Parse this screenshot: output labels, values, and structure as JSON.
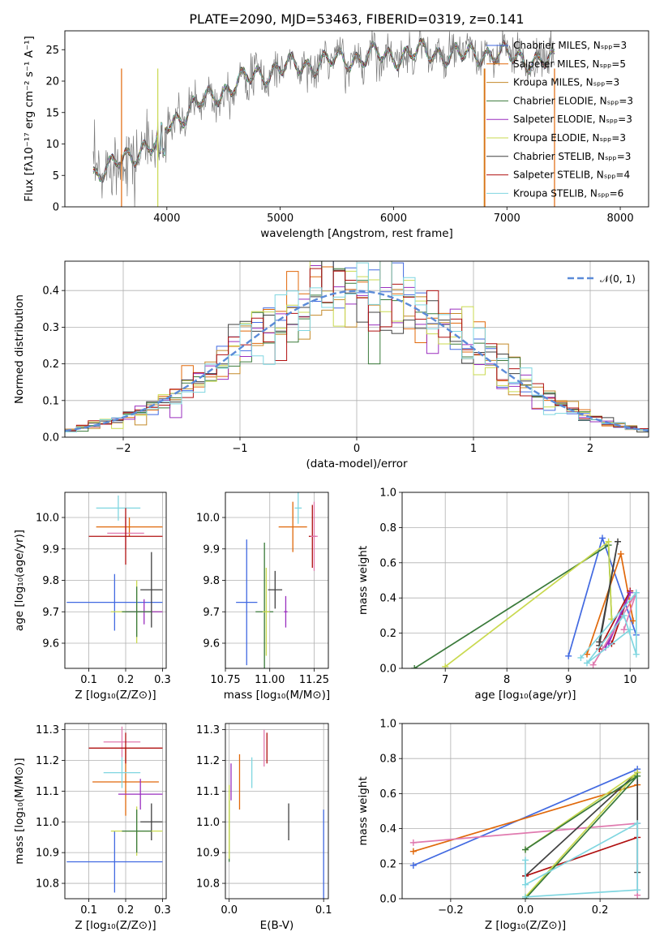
{
  "colors": {
    "c0": "#4169e1",
    "c1": "#e0680a",
    "c2": "#c48a2a",
    "c3": "#3a7a3a",
    "c4": "#9a2fbf",
    "c5": "#c9d94f",
    "c6": "#404040",
    "c7": "#b01010",
    "c8": "#7fd6e0",
    "c9": "#e07aaf",
    "mean": "#5b8bd8"
  },
  "chart_data": [
    {
      "id": "spectrum",
      "type": "line",
      "title": "PLATE=2090, MJD=53463, FIBERID=0319, z=0.141",
      "xlabel": "wavelength [Angstrom, rest frame]",
      "ylabel": "Flux [fλ10⁻¹⁷ erg cm⁻² s⁻¹ A⁻¹]",
      "xlim": [
        3100,
        8250
      ],
      "ylim": [
        0,
        28
      ],
      "xticks": [
        "4000",
        "5000",
        "6000",
        "7000",
        "8000"
      ],
      "yticks": [
        "0",
        "5",
        "10",
        "15",
        "20",
        "25"
      ],
      "grid": false,
      "legend_position": "right",
      "legend": [
        "Chabrier MILES, N_SSP=3",
        "Salpeter MILES, N_SSP=5",
        "Kroupa MILES, N_SSP=3",
        "Chabrier ELODIE, N_SSP=3",
        "Salpeter ELODIE, N_SSP=3",
        "Kroupa ELODIE, N_SSP=3",
        "Chabrier STELIB, N_SSP=3",
        "Salpeter STELIB, N_SSP=4",
        "Kroupa STELIB, N_SSP=6"
      ],
      "continuum": [
        [
          3350,
          5.5
        ],
        [
          3500,
          6.0
        ],
        [
          3650,
          8.0
        ],
        [
          3800,
          9.5
        ],
        [
          3900,
          9.5
        ],
        [
          4000,
          13.0
        ],
        [
          4200,
          15.5
        ],
        [
          4400,
          17.5
        ],
        [
          4600,
          19.5
        ],
        [
          4800,
          21.0
        ],
        [
          5000,
          22.0
        ],
        [
          5200,
          22.5
        ],
        [
          5400,
          23.0
        ],
        [
          5600,
          23.5
        ],
        [
          5800,
          24.0
        ],
        [
          6000,
          24.0
        ],
        [
          6200,
          24.5
        ],
        [
          6400,
          24.5
        ],
        [
          6600,
          24.0
        ],
        [
          6800,
          24.5
        ],
        [
          7000,
          24.0
        ],
        [
          7200,
          23.5
        ],
        [
          7350,
          23.0
        ]
      ]
    },
    {
      "id": "residuals",
      "type": "histogram",
      "xlabel": "(data-model)/error",
      "ylabel": "Normed distribution",
      "xlim": [
        -2.5,
        2.5
      ],
      "ylim": [
        0,
        0.48
      ],
      "xticks": [
        "−2",
        "−1",
        "0",
        "1",
        "2"
      ],
      "yticks": [
        "0.0",
        "0.1",
        "0.2",
        "0.3",
        "0.4"
      ],
      "grid": true,
      "legend_position": "top-right",
      "legend": [
        "𝒩(0, 1)"
      ],
      "bin_width": 0.1,
      "reference_curve": "standard normal"
    },
    {
      "id": "age-z",
      "type": "scatter",
      "xlabel": "Z [log₁₀(Z/Z⊙)]",
      "ylabel": "age  [log₁₀(age/yr)]",
      "xlim": [
        0.035,
        0.31
      ],
      "ylim": [
        9.52,
        10.08
      ],
      "xticks": [
        "0.1",
        "0.2",
        "0.3"
      ],
      "yticks": [
        "9.6",
        "9.7",
        "9.8",
        "9.9",
        "10.0"
      ],
      "grid": true,
      "points": [
        {
          "x": 0.17,
          "y": 9.73,
          "xe": 0.13,
          "ye": 0.09,
          "c": "c0"
        },
        {
          "x": 0.21,
          "y": 9.97,
          "xe": 0.09,
          "ye": 0.03,
          "c": "c1"
        },
        {
          "x": 0.2,
          "y": 9.95,
          "xe": 0.05,
          "ye": 0.05,
          "c": "c9"
        },
        {
          "x": 0.23,
          "y": 9.7,
          "xe": 0.07,
          "ye": 0.1,
          "c": "c5"
        },
        {
          "x": 0.25,
          "y": 9.7,
          "xe": 0.05,
          "ye": 0.04,
          "c": "c4"
        },
        {
          "x": 0.27,
          "y": 9.77,
          "xe": 0.03,
          "ye": 0.12,
          "c": "c6"
        },
        {
          "x": 0.18,
          "y": 10.03,
          "xe": 0.06,
          "ye": 0.04,
          "c": "c8"
        },
        {
          "x": 0.2,
          "y": 9.94,
          "xe": 0.1,
          "ye": 0.09,
          "c": "c7"
        },
        {
          "x": 0.23,
          "y": 9.7,
          "xe": 0.04,
          "ye": 0.08,
          "c": "c3"
        }
      ]
    },
    {
      "id": "age-mass",
      "type": "scatter",
      "xlabel": "mass [log₁₀(M/M⊙)]",
      "ylabel": "",
      "xlim": [
        10.75,
        11.33
      ],
      "ylim": [
        9.52,
        10.08
      ],
      "xticks": [
        "10.75",
        "11.00",
        "11.25"
      ],
      "yticks": [
        "9.6",
        "9.7",
        "9.8",
        "9.9",
        "10.0"
      ],
      "grid": true,
      "points": [
        {
          "x": 10.87,
          "y": 9.73,
          "xe": 0.06,
          "ye": 0.2,
          "c": "c0"
        },
        {
          "x": 11.13,
          "y": 9.97,
          "xe": 0.08,
          "ye": 0.08,
          "c": "c1"
        },
        {
          "x": 10.97,
          "y": 9.7,
          "xe": 0.05,
          "ye": 0.22,
          "c": "c3"
        },
        {
          "x": 10.98,
          "y": 9.7,
          "xe": 0.02,
          "ye": 0.14,
          "c": "c5"
        },
        {
          "x": 11.03,
          "y": 9.77,
          "xe": 0.04,
          "ye": 0.06,
          "c": "c6"
        },
        {
          "x": 11.09,
          "y": 9.7,
          "xe": 0.01,
          "ye": 0.05,
          "c": "c4"
        },
        {
          "x": 11.16,
          "y": 10.03,
          "xe": 0.02,
          "ye": 0.05,
          "c": "c8"
        },
        {
          "x": 11.24,
          "y": 9.94,
          "xe": 0.02,
          "ye": 0.1,
          "c": "c7"
        },
        {
          "x": 11.25,
          "y": 9.94,
          "xe": 0.02,
          "ye": 0.11,
          "c": "c9"
        }
      ]
    },
    {
      "id": "weight-age",
      "type": "line",
      "xlabel": "age  [log₁₀(age/yr)]",
      "ylabel": "mass weight",
      "xlim": [
        6.3,
        10.3
      ],
      "ylim": [
        0,
        1.0
      ],
      "xticks": [
        "7",
        "8",
        "9",
        "10"
      ],
      "yticks": [
        "0.0",
        "0.2",
        "0.4",
        "0.6",
        "0.8",
        "1.0"
      ],
      "grid": true,
      "series": [
        {
          "c": "c0",
          "points": [
            [
              9.0,
              0.07
            ],
            [
              9.55,
              0.74
            ],
            [
              10.1,
              0.19
            ]
          ]
        },
        {
          "c": "c3",
          "points": [
            [
              6.5,
              0.0
            ],
            [
              9.65,
              0.7
            ],
            [
              9.7,
              0.28
            ]
          ]
        },
        {
          "c": "c5",
          "points": [
            [
              7.0,
              0.01
            ],
            [
              9.65,
              0.72
            ],
            [
              9.7,
              0.28
            ]
          ]
        },
        {
          "c": "c1",
          "points": [
            [
              9.3,
              0.08
            ],
            [
              9.85,
              0.65
            ],
            [
              10.05,
              0.27
            ]
          ]
        },
        {
          "c": "c6",
          "points": [
            [
              9.5,
              0.13
            ],
            [
              9.8,
              0.72
            ],
            [
              9.5,
              0.15
            ]
          ]
        },
        {
          "c": "c7",
          "points": [
            [
              9.5,
              0.11
            ],
            [
              10.0,
              0.44
            ],
            [
              9.7,
              0.14
            ]
          ]
        },
        {
          "c": "c4",
          "points": [
            [
              9.6,
              0.12
            ],
            [
              10.0,
              0.43
            ],
            [
              9.65,
              0.14
            ]
          ]
        },
        {
          "c": "c9",
          "points": [
            [
              9.4,
              0.02
            ],
            [
              10.1,
              0.43
            ],
            [
              9.9,
              0.22
            ]
          ]
        },
        {
          "c": "c8",
          "points": [
            [
              9.2,
              0.06
            ],
            [
              10.1,
              0.43
            ],
            [
              10.1,
              0.08
            ],
            [
              9.9,
              0.3
            ],
            [
              9.3,
              0.03
            ],
            [
              10.0,
              0.22
            ]
          ]
        }
      ]
    },
    {
      "id": "mass-z",
      "type": "scatter",
      "xlabel": "Z [log₁₀(Z/Z⊙)]",
      "ylabel": "mass [log₁₀(M/M⊙)]",
      "xlim": [
        0.035,
        0.31
      ],
      "ylim": [
        10.75,
        11.32
      ],
      "xticks": [
        "0.1",
        "0.2",
        "0.3"
      ],
      "yticks": [
        "10.8",
        "10.9",
        "11.0",
        "11.1",
        "11.2",
        "11.3"
      ],
      "grid": true,
      "points": [
        {
          "x": 0.17,
          "y": 10.87,
          "xe": 0.13,
          "ye": 0.1,
          "c": "c0"
        },
        {
          "x": 0.2,
          "y": 11.13,
          "xe": 0.09,
          "ye": 0.11,
          "c": "c1"
        },
        {
          "x": 0.19,
          "y": 11.26,
          "xe": 0.05,
          "ye": 0.05,
          "c": "c9"
        },
        {
          "x": 0.24,
          "y": 11.09,
          "xe": 0.06,
          "ye": 0.05,
          "c": "c4"
        },
        {
          "x": 0.27,
          "y": 11.0,
          "xe": 0.03,
          "ye": 0.06,
          "c": "c6"
        },
        {
          "x": 0.23,
          "y": 10.97,
          "xe": 0.07,
          "ye": 0.08,
          "c": "c5"
        },
        {
          "x": 0.19,
          "y": 11.16,
          "xe": 0.05,
          "ye": 0.05,
          "c": "c8"
        },
        {
          "x": 0.2,
          "y": 11.24,
          "xe": 0.1,
          "ye": 0.05,
          "c": "c7"
        },
        {
          "x": 0.23,
          "y": 10.97,
          "xe": 0.04,
          "ye": 0.07,
          "c": "c3"
        }
      ]
    },
    {
      "id": "mass-ebv",
      "type": "scatter",
      "xlabel": "E(B-V)",
      "ylabel": "",
      "xlim": [
        -0.004,
        0.105
      ],
      "ylim": [
        10.75,
        11.32
      ],
      "xticks": [
        "0.0",
        "0.1"
      ],
      "yticks": [
        "10.8",
        "10.9",
        "11.0",
        "11.1",
        "11.2",
        "11.3"
      ],
      "grid": true,
      "points": [
        {
          "x": 0.0,
          "y": 10.97,
          "xe": 0,
          "ye": 0.1,
          "c": "c3"
        },
        {
          "x": 0.0,
          "y": 11.0,
          "xe": 0,
          "ye": 0.12,
          "c": "c5"
        },
        {
          "x": 0.002,
          "y": 11.13,
          "xe": 0,
          "ye": 0.06,
          "c": "c4"
        },
        {
          "x": 0.011,
          "y": 11.13,
          "xe": 0,
          "ye": 0.09,
          "c": "c1"
        },
        {
          "x": 0.024,
          "y": 11.16,
          "xe": 0,
          "ye": 0.05,
          "c": "c8"
        },
        {
          "x": 0.037,
          "y": 11.24,
          "xe": 0,
          "ye": 0.06,
          "c": "c9"
        },
        {
          "x": 0.04,
          "y": 11.24,
          "xe": 0,
          "ye": 0.05,
          "c": "c7"
        },
        {
          "x": 0.063,
          "y": 11.0,
          "xe": 0,
          "ye": 0.06,
          "c": "c6"
        },
        {
          "x": 0.1,
          "y": 10.87,
          "xe": 0,
          "ye": 0.17,
          "c": "c0"
        }
      ]
    },
    {
      "id": "weight-z",
      "type": "line",
      "xlabel": "Z [log₁₀(Z/Z⊙)]",
      "ylabel": "mass weight",
      "xlim": [
        -0.33,
        0.33
      ],
      "ylim": [
        0,
        1.0
      ],
      "xticks": [
        "−0.2",
        "0.0",
        "0.2"
      ],
      "yticks": [
        "0.0",
        "0.2",
        "0.4",
        "0.6",
        "0.8",
        "1.0"
      ],
      "grid": true,
      "series": [
        {
          "c": "c0",
          "points": [
            [
              -0.3,
              0.19
            ],
            [
              0.3,
              0.74
            ]
          ]
        },
        {
          "c": "c1",
          "points": [
            [
              -0.3,
              0.27
            ],
            [
              0.3,
              0.65
            ]
          ]
        },
        {
          "c": "c9",
          "points": [
            [
              -0.3,
              0.32
            ],
            [
              0.3,
              0.43
            ],
            [
              0.3,
              0.02
            ]
          ]
        },
        {
          "c": "c6",
          "points": [
            [
              0.0,
              0.13
            ],
            [
              0.3,
              0.72
            ],
            [
              0.3,
              0.15
            ]
          ]
        },
        {
          "c": "c7",
          "points": [
            [
              0.0,
              0.13
            ],
            [
              0.3,
              0.35
            ]
          ]
        },
        {
          "c": "c5",
          "points": [
            [
              0.0,
              0.01
            ],
            [
              0.3,
              0.72
            ],
            [
              0.0,
              0.28
            ]
          ]
        },
        {
          "c": "c3",
          "points": [
            [
              0.0,
              0.0
            ],
            [
              0.3,
              0.7
            ],
            [
              0.0,
              0.28
            ]
          ]
        },
        {
          "c": "c8",
          "points": [
            [
              0.0,
              0.01
            ],
            [
              0.3,
              0.05
            ],
            [
              0.3,
              0.43
            ],
            [
              0.0,
              0.08
            ],
            [
              0.0,
              0.22
            ]
          ]
        }
      ]
    }
  ]
}
